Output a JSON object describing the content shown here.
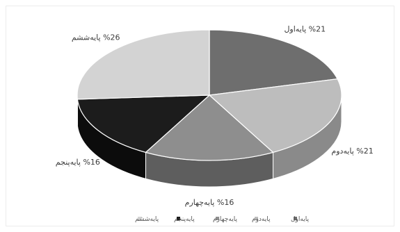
{
  "chart_data": {
    "type": "pie",
    "style": "3d",
    "title": "",
    "slices": [
      {
        "label": "پایه‌اول",
        "value": 21,
        "display": "%21 پایه‌اول",
        "color": "#6e6e6e",
        "side": "#4d4d4d"
      },
      {
        "label": "پایه‌دوم",
        "value": 21,
        "display": "%21 پایه‌دوم",
        "color": "#bdbdbd",
        "side": "#8a8a8a"
      },
      {
        "label": "پایه‌چهارم",
        "value": 16,
        "display": "%16 پایه‌چهارم",
        "color": "#8e8e8e",
        "side": "#5e5e5e"
      },
      {
        "label": "پایه‌پنجم",
        "value": 16,
        "display": "%16 پایه‌پنجم",
        "color": "#1c1c1c",
        "side": "#0c0c0c"
      },
      {
        "label": "پایه‌ششم",
        "value": 26,
        "display": "%26 پایه‌ششم",
        "color": "#d3d3d3",
        "side": "#a3a3a3"
      }
    ],
    "legend": {
      "position": "bottom",
      "entries": [
        "پایه‌اول",
        "پایه‌دوم",
        "پایه‌چهارم",
        "پایه‌پنجم",
        "پایه‌ششم"
      ]
    }
  }
}
